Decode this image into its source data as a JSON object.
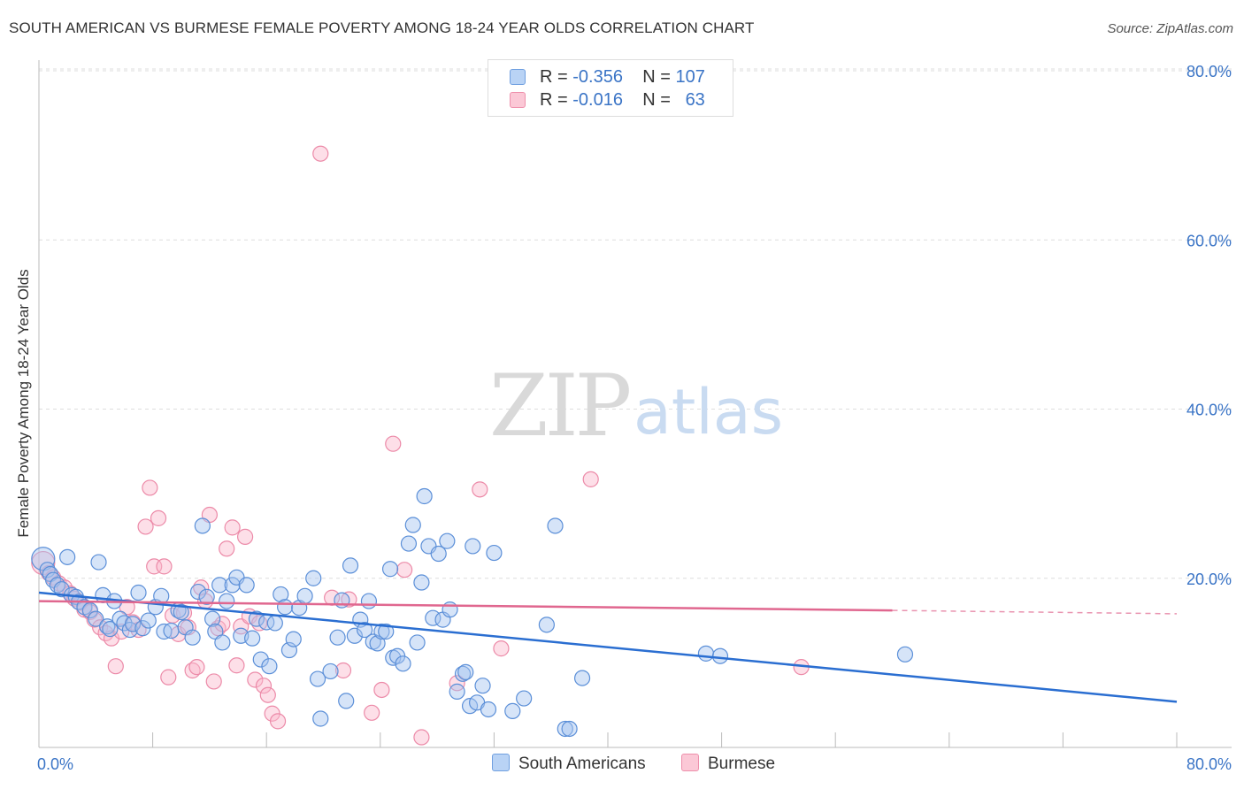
{
  "title": "SOUTH AMERICAN VS BURMESE FEMALE POVERTY AMONG 18-24 YEAR OLDS CORRELATION CHART",
  "source": "Source: ZipAtlas.com",
  "watermark": {
    "zip": "ZIP",
    "atlas": "atlas"
  },
  "legend": {
    "r_label": "R =",
    "n_label": "N =",
    "rows": [
      {
        "r": "-0.356",
        "n": "107",
        "swatch_fill": "#b9d3f5",
        "swatch_stroke": "#6f9fe0"
      },
      {
        "r": "-0.016",
        "n": "63",
        "swatch_fill": "#fbc8d6",
        "swatch_stroke": "#ee8fab"
      }
    ]
  },
  "bottom_legend": [
    "South Americans",
    "Burmese"
  ],
  "colors": {
    "blue_fill": "rgba(165,196,240,0.45)",
    "blue_stroke": "#5b8fd8",
    "blue_line": "#2a6ed1",
    "pink_fill": "rgba(250,185,205,0.45)",
    "pink_stroke": "#ec8aa8",
    "pink_line": "#e0678f",
    "axis_text": "#3a74c6",
    "grid": "#dddddd"
  },
  "chart_data": {
    "type": "scatter",
    "ylabel": "Female Poverty Among 18-24 Year Olds",
    "xlim": [
      0,
      80
    ],
    "ylim": [
      0,
      80
    ],
    "x_tick_labels": [
      "0.0%",
      "80.0%"
    ],
    "y_ticks": [
      20,
      40,
      60,
      80
    ],
    "y_tick_labels": [
      "20.0%",
      "40.0%",
      "60.0%",
      "80.0%"
    ],
    "grid": true,
    "legend_position": "top-center",
    "series": [
      {
        "name": "South Americans",
        "r": -0.356,
        "n": 107,
        "trend": {
          "x0": 0,
          "y0": 18.3,
          "x1": 80,
          "y1": 5.4
        },
        "points": [
          [
            0.3,
            22.3
          ],
          [
            0.6,
            21.0
          ],
          [
            0.8,
            20.5
          ],
          [
            1.0,
            19.8
          ],
          [
            1.3,
            19.2
          ],
          [
            1.6,
            18.7
          ],
          [
            2.0,
            22.5
          ],
          [
            2.3,
            18.0
          ],
          [
            2.6,
            17.8
          ],
          [
            2.8,
            17.2
          ],
          [
            3.2,
            16.6
          ],
          [
            3.6,
            16.2
          ],
          [
            4.0,
            15.2
          ],
          [
            4.2,
            21.9
          ],
          [
            4.5,
            18.0
          ],
          [
            4.8,
            14.3
          ],
          [
            5.0,
            14.0
          ],
          [
            5.3,
            17.3
          ],
          [
            5.7,
            15.2
          ],
          [
            6.0,
            14.7
          ],
          [
            6.4,
            13.9
          ],
          [
            6.6,
            14.6
          ],
          [
            7.0,
            18.3
          ],
          [
            7.3,
            14.1
          ],
          [
            7.7,
            15.0
          ],
          [
            8.2,
            16.6
          ],
          [
            8.6,
            17.9
          ],
          [
            8.8,
            13.7
          ],
          [
            9.3,
            13.8
          ],
          [
            9.8,
            16.2
          ],
          [
            10.0,
            16.0
          ],
          [
            10.3,
            14.2
          ],
          [
            10.8,
            13.0
          ],
          [
            11.2,
            18.4
          ],
          [
            11.5,
            26.2
          ],
          [
            11.8,
            17.8
          ],
          [
            12.2,
            15.2
          ],
          [
            12.4,
            13.7
          ],
          [
            12.7,
            19.2
          ],
          [
            12.9,
            12.4
          ],
          [
            13.2,
            17.3
          ],
          [
            13.6,
            19.2
          ],
          [
            13.9,
            20.1
          ],
          [
            14.2,
            13.2
          ],
          [
            14.6,
            19.2
          ],
          [
            15.0,
            12.9
          ],
          [
            15.3,
            15.2
          ],
          [
            15.6,
            10.4
          ],
          [
            16.0,
            14.8
          ],
          [
            16.2,
            9.6
          ],
          [
            16.6,
            14.7
          ],
          [
            17.0,
            18.1
          ],
          [
            17.3,
            16.6
          ],
          [
            17.6,
            11.5
          ],
          [
            17.9,
            12.8
          ],
          [
            18.3,
            16.5
          ],
          [
            18.7,
            17.9
          ],
          [
            19.3,
            20.0
          ],
          [
            19.6,
            8.1
          ],
          [
            19.8,
            3.4
          ],
          [
            20.5,
            9.0
          ],
          [
            21.0,
            13.0
          ],
          [
            21.3,
            17.4
          ],
          [
            21.6,
            5.5
          ],
          [
            21.9,
            21.5
          ],
          [
            22.2,
            13.2
          ],
          [
            22.6,
            15.1
          ],
          [
            22.9,
            13.9
          ],
          [
            23.2,
            17.3
          ],
          [
            23.5,
            12.5
          ],
          [
            23.8,
            12.3
          ],
          [
            24.1,
            13.7
          ],
          [
            24.4,
            13.7
          ],
          [
            24.7,
            21.1
          ],
          [
            24.9,
            10.6
          ],
          [
            25.2,
            10.8
          ],
          [
            25.6,
            9.9
          ],
          [
            26.0,
            24.1
          ],
          [
            26.3,
            26.3
          ],
          [
            26.6,
            12.4
          ],
          [
            26.9,
            19.5
          ],
          [
            27.1,
            29.7
          ],
          [
            27.4,
            23.8
          ],
          [
            27.7,
            15.3
          ],
          [
            28.1,
            22.9
          ],
          [
            28.4,
            15.1
          ],
          [
            28.7,
            24.4
          ],
          [
            28.9,
            16.3
          ],
          [
            29.4,
            6.6
          ],
          [
            29.8,
            8.7
          ],
          [
            30.0,
            8.9
          ],
          [
            30.3,
            4.9
          ],
          [
            30.5,
            23.8
          ],
          [
            30.8,
            5.3
          ],
          [
            31.2,
            7.3
          ],
          [
            31.6,
            4.5
          ],
          [
            32.0,
            23.0
          ],
          [
            33.3,
            4.3
          ],
          [
            34.1,
            5.8
          ],
          [
            35.7,
            14.5
          ],
          [
            36.3,
            26.2
          ],
          [
            37.0,
            2.2
          ],
          [
            37.3,
            2.2
          ],
          [
            38.2,
            8.2
          ],
          [
            46.9,
            11.1
          ],
          [
            47.9,
            10.8
          ],
          [
            60.9,
            11.0
          ]
        ]
      },
      {
        "name": "Burmese",
        "r": -0.016,
        "n": 63,
        "trend": {
          "x0": 0,
          "y0": 17.3,
          "x1": 60,
          "y1": 16.2,
          "dashed_to_x": 80,
          "dashed_to_y": 15.8
        },
        "points": [
          [
            0.3,
            21.8
          ],
          [
            0.7,
            20.6
          ],
          [
            1.0,
            20.1
          ],
          [
            1.4,
            19.4
          ],
          [
            1.8,
            18.9
          ],
          [
            2.2,
            18.2
          ],
          [
            2.5,
            17.6
          ],
          [
            2.9,
            17.1
          ],
          [
            3.2,
            16.3
          ],
          [
            3.6,
            16.0
          ],
          [
            3.9,
            15.1
          ],
          [
            4.3,
            14.2
          ],
          [
            4.7,
            13.5
          ],
          [
            5.1,
            12.9
          ],
          [
            5.4,
            9.6
          ],
          [
            5.8,
            13.7
          ],
          [
            6.2,
            16.6
          ],
          [
            6.6,
            14.8
          ],
          [
            7.0,
            13.9
          ],
          [
            7.5,
            26.1
          ],
          [
            7.8,
            30.7
          ],
          [
            8.1,
            21.4
          ],
          [
            8.4,
            27.1
          ],
          [
            8.8,
            21.4
          ],
          [
            9.1,
            8.3
          ],
          [
            9.4,
            15.6
          ],
          [
            9.8,
            13.4
          ],
          [
            10.2,
            15.9
          ],
          [
            10.5,
            14.2
          ],
          [
            10.8,
            9.1
          ],
          [
            11.1,
            9.5
          ],
          [
            11.4,
            18.9
          ],
          [
            11.7,
            17.3
          ],
          [
            12.0,
            27.5
          ],
          [
            12.3,
            7.8
          ],
          [
            12.6,
            14.1
          ],
          [
            12.9,
            14.6
          ],
          [
            13.2,
            23.5
          ],
          [
            13.6,
            26.0
          ],
          [
            13.9,
            9.7
          ],
          [
            14.2,
            14.3
          ],
          [
            14.5,
            24.9
          ],
          [
            14.8,
            15.5
          ],
          [
            15.2,
            8.0
          ],
          [
            15.5,
            14.7
          ],
          [
            15.8,
            7.3
          ],
          [
            16.1,
            6.2
          ],
          [
            16.4,
            4.0
          ],
          [
            16.8,
            3.1
          ],
          [
            19.8,
            70.2
          ],
          [
            20.6,
            17.7
          ],
          [
            21.4,
            9.1
          ],
          [
            21.8,
            17.5
          ],
          [
            23.4,
            4.1
          ],
          [
            24.1,
            6.8
          ],
          [
            24.9,
            35.9
          ],
          [
            25.7,
            21.0
          ],
          [
            26.9,
            1.2
          ],
          [
            29.4,
            7.6
          ],
          [
            31.0,
            30.5
          ],
          [
            32.5,
            11.7
          ],
          [
            38.8,
            31.7
          ],
          [
            53.6,
            9.5
          ]
        ]
      }
    ]
  }
}
